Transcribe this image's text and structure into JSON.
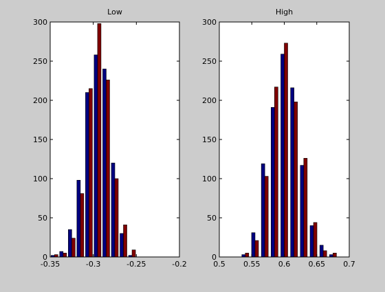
{
  "colors": {
    "figure_bg": "#cccccc",
    "axes_bg": "#ffffff",
    "series_a": "#000080",
    "series_b": "#800000"
  },
  "chart_data": [
    {
      "type": "bar",
      "title": "Low",
      "xlim": [
        -0.35,
        -0.2
      ],
      "ylim": [
        0,
        300
      ],
      "xticks": [
        -0.35,
        -0.3,
        -0.25,
        -0.2
      ],
      "xtick_labels": [
        "-0.35",
        "-0.3",
        "-0.25",
        "-0.2"
      ],
      "yticks": [
        0,
        50,
        100,
        150,
        200,
        250,
        300
      ],
      "ytick_labels": [
        "0",
        "50",
        "100",
        "150",
        "200",
        "250",
        "300"
      ],
      "categories": [
        -0.345,
        -0.335,
        -0.325,
        -0.315,
        -0.305,
        -0.295,
        -0.285,
        -0.275,
        -0.265,
        -0.255
      ],
      "series": [
        {
          "values": [
            2,
            7,
            35,
            98,
            210,
            258,
            240,
            120,
            30,
            2
          ]
        },
        {
          "values": [
            3,
            5,
            24,
            81,
            215,
            298,
            226,
            100,
            41,
            9
          ]
        }
      ]
    },
    {
      "type": "bar",
      "title": "High",
      "xlim": [
        0.5,
        0.7
      ],
      "ylim": [
        0,
        300
      ],
      "xticks": [
        0.5,
        0.55,
        0.6,
        0.65,
        0.7
      ],
      "xtick_labels": [
        "0.5",
        "0.55",
        "0.6",
        "0.65",
        "0.7"
      ],
      "yticks": [
        0,
        50,
        100,
        150,
        200,
        250,
        300
      ],
      "ytick_labels": [
        "0",
        "50",
        "100",
        "150",
        "200",
        "250",
        "300"
      ],
      "categories": [
        0.54,
        0.555,
        0.57,
        0.585,
        0.6,
        0.615,
        0.63,
        0.645,
        0.66,
        0.675
      ],
      "series": [
        {
          "values": [
            3,
            31,
            119,
            191,
            259,
            216,
            117,
            40,
            15,
            3
          ]
        },
        {
          "values": [
            5,
            21,
            103,
            217,
            273,
            198,
            126,
            44,
            8,
            5
          ]
        }
      ]
    }
  ]
}
